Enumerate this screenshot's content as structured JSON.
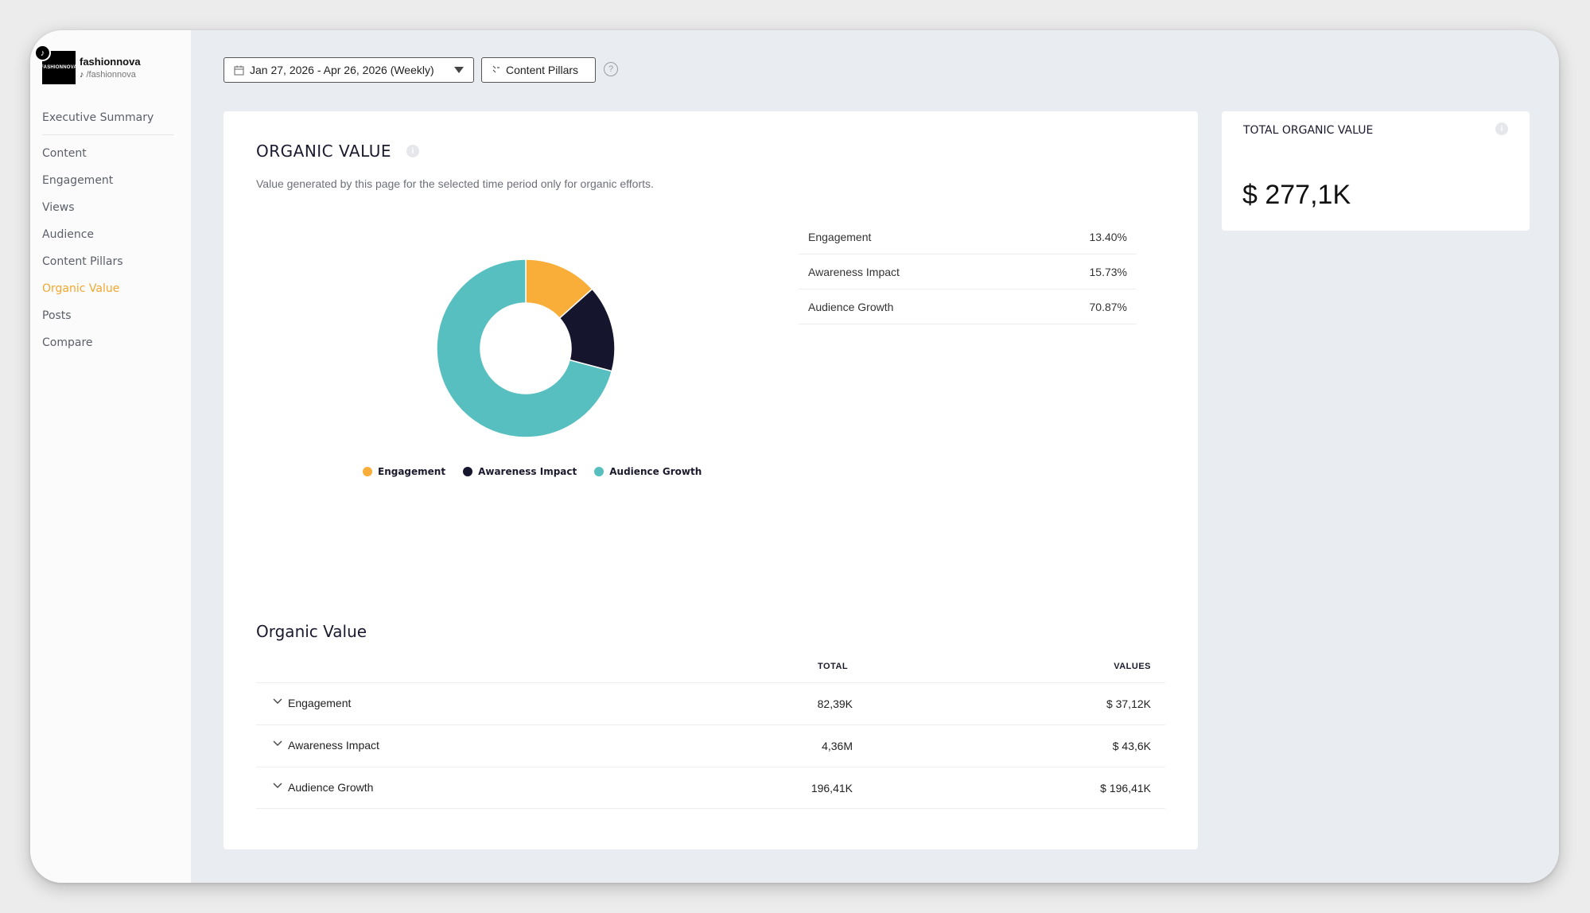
{
  "profile": {
    "name": "fashionnova",
    "handle": "/fashionnova",
    "avatar_text": "FASHIONNOVA"
  },
  "sidebar": {
    "items": [
      {
        "label": "Executive Summary"
      },
      {
        "label": "Content"
      },
      {
        "label": "Engagement"
      },
      {
        "label": "Views"
      },
      {
        "label": "Audience"
      },
      {
        "label": "Content Pillars"
      },
      {
        "label": "Organic Value",
        "active": true
      },
      {
        "label": "Posts"
      },
      {
        "label": "Compare"
      }
    ]
  },
  "toolbar": {
    "date_range": "Jan 27, 2026 - Apr 26, 2026 (Weekly)",
    "content_pillars": "Content Pillars",
    "help": "?"
  },
  "organic_value": {
    "title": "ORGANIC VALUE",
    "subtitle": "Value generated by this page for the selected time period only for organic efforts.",
    "breakdown": [
      {
        "label": "Engagement",
        "percent": "13.40%"
      },
      {
        "label": "Awareness Impact",
        "percent": "15.73%"
      },
      {
        "label": "Audience Growth",
        "percent": "70.87%"
      }
    ]
  },
  "chart_data": {
    "type": "pie",
    "categories": [
      "Engagement",
      "Awareness Impact",
      "Audience Growth"
    ],
    "values": [
      13.4,
      15.73,
      70.87
    ],
    "colors": [
      "#f8ae39",
      "#15152e",
      "#57bfbf"
    ],
    "legend_position": "bottom"
  },
  "table": {
    "title": "Organic Value",
    "headers": {
      "total": "TOTAL",
      "values": "VALUES"
    },
    "rows": [
      {
        "name": "Engagement",
        "total": "82,39K",
        "value": "$ 37,12K"
      },
      {
        "name": "Awareness Impact",
        "total": "4,36M",
        "value": "$ 43,6K"
      },
      {
        "name": "Audience Growth",
        "total": "196,41K",
        "value": "$ 196,41K"
      }
    ]
  },
  "total_card": {
    "title": "TOTAL ORGANIC VALUE",
    "value": "$ 277,1K"
  },
  "colors": {
    "accent": "#f2a72e",
    "engagement": "#f8ae39",
    "awareness": "#15152e",
    "audience_growth": "#57bfbf"
  }
}
